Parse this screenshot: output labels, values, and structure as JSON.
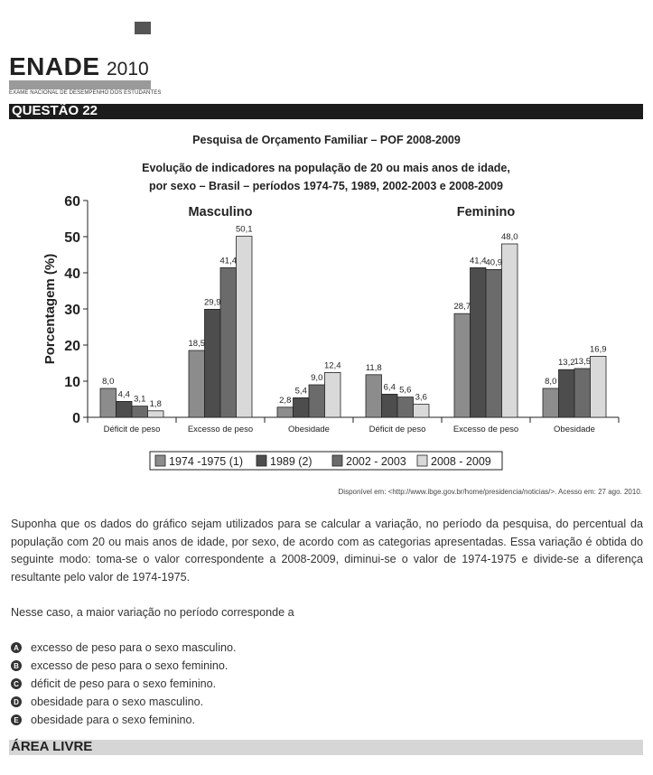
{
  "header": {
    "brand": "ENADE",
    "year": "2010",
    "subtitle": "EXAME NACIONAL DE DESEMPENHO DOS ESTUDANTES",
    "question": "QUESTÃO 22"
  },
  "chart_heading": "Pesquisa de Orçamento Familiar – POF 2008-2009",
  "chart_data": {
    "type": "bar",
    "title_lines": [
      "Evolução de indicadores na população de 20 ou mais anos de idade,",
      "por sexo – Brasil – períodos 1974-75, 1989, 2002-2003 e 2008-2009"
    ],
    "ylabel": "Porcentagem (%)",
    "ylim": [
      0,
      60
    ],
    "yticks": [
      0,
      10,
      20,
      30,
      40,
      50,
      60
    ],
    "groups": [
      {
        "label": "Masculino",
        "categories": [
          "Déficit de peso",
          "Excesso de peso",
          "Obesidade"
        ]
      },
      {
        "label": "Feminino",
        "categories": [
          "Déficit de peso",
          "Excesso de peso",
          "Obesidade"
        ]
      }
    ],
    "categories": [
      "Déficit de peso",
      "Excesso de peso",
      "Obesidade",
      "Déficit de peso",
      "Excesso de peso",
      "Obesidade"
    ],
    "series": [
      {
        "name": "1974 -1975 (1)",
        "color": "#8c8c8c",
        "values": [
          8.0,
          18.5,
          2.8,
          11.8,
          28.7,
          8.0
        ],
        "labels": [
          "8,0",
          "18,5",
          "2,8",
          "11,8",
          "28,7",
          "8,0"
        ]
      },
      {
        "name": "1989 (2)",
        "color": "#4d4d4d",
        "values": [
          4.4,
          29.9,
          5.4,
          6.4,
          41.4,
          13.2
        ],
        "labels": [
          "4,4",
          "29,9",
          "5,4",
          "6,4",
          "41,4",
          "13,2"
        ]
      },
      {
        "name": "2002 - 2003",
        "color": "#6b6b6b",
        "values": [
          3.1,
          41.4,
          9.0,
          5.6,
          40.9,
          13.5
        ],
        "labels": [
          "3,1",
          "41,4",
          "9,0",
          "5,6",
          "40,9",
          "13,5"
        ]
      },
      {
        "name": "2008 - 2009",
        "color": "#d9d9d9",
        "values": [
          1.8,
          50.1,
          12.4,
          3.6,
          48.0,
          16.9
        ],
        "labels": [
          "1,8",
          "50,1",
          "12,4",
          "3,6",
          "48,0",
          "16,9"
        ]
      }
    ],
    "grid": false,
    "legend": "bottom"
  },
  "source": "Disponível em: <http://www.ibge.gov.br/home/presidencia/noticias/>. Acesso em: 27 ago. 2010.",
  "paragraph1": "Suponha que os dados do gráfico sejam utilizados para se calcular a variação, no período da pesquisa, do percentual da população com 20 ou mais anos de idade, por sexo, de acordo com as categorias apresentadas. Essa variação é obtida do seguinte modo: toma-se o valor correspondente a 2008-2009, diminui-se o valor de 1974-1975 e divide-se a diferença resultante pelo valor de 1974-1975.",
  "paragraph2": "Nesse caso, a maior variação no período corresponde a",
  "options": [
    {
      "letter": "A",
      "text": "excesso de peso para o sexo masculino."
    },
    {
      "letter": "B",
      "text": "excesso de peso para o sexo feminino."
    },
    {
      "letter": "C",
      "text": "déficit de peso para o sexo feminino."
    },
    {
      "letter": "D",
      "text": "obesidade para o sexo masculino."
    },
    {
      "letter": "E",
      "text": "obesidade para o sexo feminino."
    }
  ],
  "footer": "ÁREA LIVRE"
}
